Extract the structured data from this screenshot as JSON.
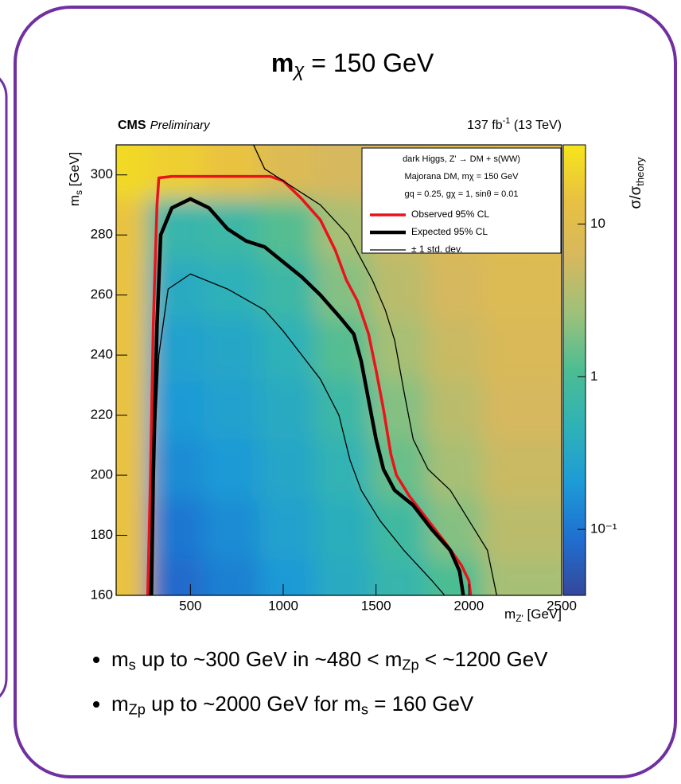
{
  "title": {
    "main": "m",
    "sub": "χ",
    "rest": " = 150 GeV"
  },
  "chart_data": {
    "type": "heatmap",
    "experiment": "CMS",
    "status": "Preliminary",
    "lumi": [
      "137 fb",
      "-1",
      " (13 TeV)"
    ],
    "xlabel": [
      "m",
      "Z'",
      " [GeV]"
    ],
    "ylabel": [
      "m",
      "s",
      " [GeV]"
    ],
    "zlabel": [
      "σ/σ",
      "theory"
    ],
    "legend_header": [
      "dark Higgs, Z' → DM + s(WW)",
      "Majorana DM, mχ = 150 GeV",
      "gq = 0.25, gχ = 1, sinθ = 0.01"
    ],
    "xlim": [
      100,
      2500
    ],
    "xticks": [
      500,
      1000,
      1500,
      2000,
      2500
    ],
    "ylim": [
      160,
      310
    ],
    "yticks": [
      160,
      180,
      200,
      220,
      240,
      260,
      280,
      300
    ],
    "zlim": [
      0.037,
      33
    ],
    "zscale": "log",
    "zticks": [
      {
        "value": 0.1,
        "label": "10⁻¹"
      },
      1,
      10
    ],
    "colormap": [
      "#35479b",
      "#1f6fd0",
      "#1d9bd6",
      "#2fb2b6",
      "#4cbd93",
      "#9dc17a",
      "#d6b85e",
      "#e8c042",
      "#f7e51a"
    ],
    "xbins": [
      100,
      400,
      700,
      1000,
      1300,
      1600,
      1900,
      2200,
      2500
    ],
    "ybins": [
      160,
      180,
      200,
      220,
      240,
      260,
      280,
      300,
      310
    ],
    "z": [
      [
        15,
        0.08,
        0.12,
        0.2,
        0.35,
        0.6,
        1.1,
        3
      ],
      [
        15,
        0.1,
        0.15,
        0.25,
        0.4,
        0.8,
        2,
        4
      ],
      [
        15,
        0.15,
        0.2,
        0.3,
        0.5,
        1.5,
        3,
        5
      ],
      [
        15,
        0.2,
        0.25,
        0.35,
        0.7,
        2,
        4,
        6
      ],
      [
        15,
        0.25,
        0.3,
        0.45,
        1.2,
        3,
        5,
        7
      ],
      [
        15,
        0.35,
        0.45,
        0.7,
        2,
        4,
        6,
        8
      ],
      [
        15,
        0.6,
        0.7,
        1.2,
        3,
        5,
        7,
        9
      ],
      [
        25,
        20,
        15,
        8,
        6,
        7,
        9,
        10
      ]
    ],
    "series": [
      {
        "name": "Observed 95% CL",
        "color": "#e8141b",
        "x": [
          270,
          285,
          300,
          320,
          330,
          400,
          930,
          1000,
          1100,
          1200,
          1280,
          1340,
          1400,
          1460,
          1500,
          1540,
          1580,
          1610,
          1680,
          1780,
          1880,
          1960,
          2000,
          2010
        ],
        "values": [
          160,
          200,
          250,
          290,
          299,
          299.5,
          299.5,
          298,
          292,
          285,
          275,
          265,
          258,
          247,
          235,
          222,
          207,
          200,
          193,
          185,
          177,
          170,
          165,
          160
        ]
      },
      {
        "name": "Expected 95% CL",
        "color": "#000000",
        "x": [
          290,
          300,
          320,
          340,
          400,
          500,
          600,
          700,
          800,
          900,
          1000,
          1100,
          1200,
          1300,
          1380,
          1420,
          1460,
          1500,
          1540,
          1600,
          1700,
          1800,
          1900,
          1950,
          1970
        ],
        "values": [
          160,
          200,
          250,
          280,
          289,
          292,
          289,
          282,
          278,
          276,
          271,
          266,
          260,
          253,
          247,
          238,
          225,
          212,
          202,
          195,
          190,
          182,
          175,
          168,
          160
        ]
      },
      {
        "name": "± 1 std. dev.",
        "color": "#000000",
        "pieces": [
          {
            "x": [
              280,
              300,
              330,
              380,
              500,
              700,
              900,
              1000,
              1100,
              1200,
              1300,
              1360,
              1420,
              1520,
              1650,
              1800,
              1870
            ],
            "values": [
              160,
              200,
              240,
              262,
              267,
              262,
              255,
              248,
              240,
              232,
              220,
              205,
              195,
              185,
              175,
              165,
              160
            ]
          },
          {
            "x": [
              840,
              900,
              1000,
              1200,
              1350,
              1480,
              1550,
              1600,
              1650,
              1700,
              1780,
              1900,
              2000,
              2100,
              2150
            ],
            "values": [
              310,
              302,
              298,
              290,
              280,
              265,
              255,
              245,
              228,
              212,
              202,
              195,
              185,
              175,
              160
            ]
          }
        ]
      }
    ]
  },
  "bullets": [
    [
      "m",
      "s",
      " up to ~300 GeV in ~480 < m",
      "Zp",
      " < ~1200 GeV"
    ],
    [
      "m",
      "Zp",
      " up to ~2000 GeV for m",
      "s",
      " = 160 GeV"
    ]
  ]
}
